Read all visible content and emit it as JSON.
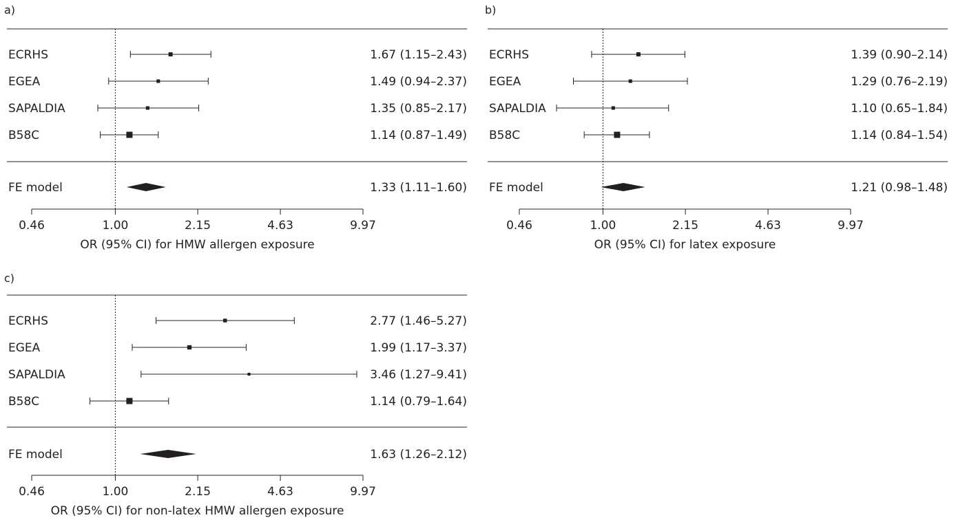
{
  "chart_data": [
    {
      "type": "forest",
      "panel": "a)",
      "xlabel": "OR (95% CI) for HMW allergen exposure",
      "scale": "log",
      "ref_line": 1.0,
      "ticks": [
        "0.46",
        "1.00",
        "2.15",
        "4.63",
        "9.97"
      ],
      "studies": [
        {
          "label": "ECRHS",
          "or": 1.67,
          "lo": 1.15,
          "hi": 2.43,
          "text": "1.67 (1.15–2.43)",
          "weight": 0.5
        },
        {
          "label": "EGEA",
          "or": 1.49,
          "lo": 0.94,
          "hi": 2.37,
          "text": "1.49 (0.94–2.37)",
          "weight": 0.35
        },
        {
          "label": "SAPALDIA",
          "or": 1.35,
          "lo": 0.85,
          "hi": 2.17,
          "text": "1.35 (0.85–2.17)",
          "weight": 0.35
        },
        {
          "label": "B58C",
          "or": 1.14,
          "lo": 0.87,
          "hi": 1.49,
          "text": "1.14 (0.87–1.49)",
          "weight": 1.0
        }
      ],
      "summary": {
        "label": "FE model",
        "or": 1.33,
        "lo": 1.11,
        "hi": 1.6,
        "text": "1.33 (1.11–1.60)"
      }
    },
    {
      "type": "forest",
      "panel": "b)",
      "xlabel": "OR (95% CI) for latex exposure",
      "scale": "log",
      "ref_line": 1.0,
      "ticks": [
        "0.46",
        "1.00",
        "2.15",
        "4.63",
        "9.97"
      ],
      "studies": [
        {
          "label": "ECRHS",
          "or": 1.39,
          "lo": 0.9,
          "hi": 2.14,
          "text": "1.39 (0.90–2.14)",
          "weight": 0.5
        },
        {
          "label": "EGEA",
          "or": 1.29,
          "lo": 0.76,
          "hi": 2.19,
          "text": "1.29 (0.76–2.19)",
          "weight": 0.35
        },
        {
          "label": "SAPALDIA",
          "or": 1.1,
          "lo": 0.65,
          "hi": 1.84,
          "text": "1.10 (0.65–1.84)",
          "weight": 0.35
        },
        {
          "label": "B58C",
          "or": 1.14,
          "lo": 0.84,
          "hi": 1.54,
          "text": "1.14 (0.84–1.54)",
          "weight": 1.0
        }
      ],
      "summary": {
        "label": "FE model",
        "or": 1.21,
        "lo": 0.98,
        "hi": 1.48,
        "text": "1.21 (0.98–1.48)"
      }
    },
    {
      "type": "forest",
      "panel": "c)",
      "xlabel": "OR (95% CI) for non-latex HMW allergen exposure",
      "scale": "log",
      "ref_line": 1.0,
      "ticks": [
        "0.46",
        "1.00",
        "2.15",
        "4.63",
        "9.97"
      ],
      "studies": [
        {
          "label": "ECRHS",
          "or": 2.77,
          "lo": 1.46,
          "hi": 5.27,
          "text": "2.77 (1.46–5.27)",
          "weight": 0.4
        },
        {
          "label": "EGEA",
          "or": 1.99,
          "lo": 1.17,
          "hi": 3.37,
          "text": "1.99 (1.17–3.37)",
          "weight": 0.55
        },
        {
          "label": "SAPALDIA",
          "or": 3.46,
          "lo": 1.27,
          "hi": 9.41,
          "text": "3.46 (1.27–9.41)",
          "weight": 0.2
        },
        {
          "label": "B58C",
          "or": 1.14,
          "lo": 0.79,
          "hi": 1.64,
          "text": "1.14 (0.79–1.64)",
          "weight": 1.0
        }
      ],
      "summary": {
        "label": "FE model",
        "or": 1.63,
        "lo": 1.26,
        "hi": 2.12,
        "text": "1.63 (1.26–2.12)"
      }
    }
  ]
}
